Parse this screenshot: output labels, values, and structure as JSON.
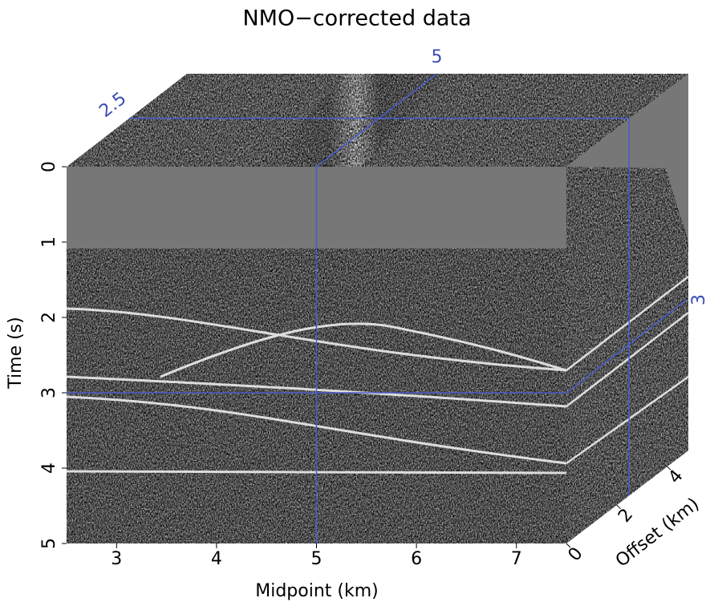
{
  "chart_data": {
    "type": "cube",
    "title": "NMO−corrected data",
    "xlabel": "Midpoint (km)",
    "ylabel": "Time (s)",
    "zlabel": "Offset (km)",
    "xlim": [
      2.5,
      7.5
    ],
    "xticks": [
      3,
      4,
      5,
      6,
      7
    ],
    "ylim": [
      0,
      5
    ],
    "yticks": [
      0,
      1,
      2,
      3,
      4,
      5
    ],
    "zlim": [
      0,
      4.8
    ],
    "zticks": [
      0,
      2,
      4
    ],
    "slices": {
      "x": 5,
      "y": 3,
      "z": 2.5
    },
    "slice_color": "#4a5cc8"
  }
}
